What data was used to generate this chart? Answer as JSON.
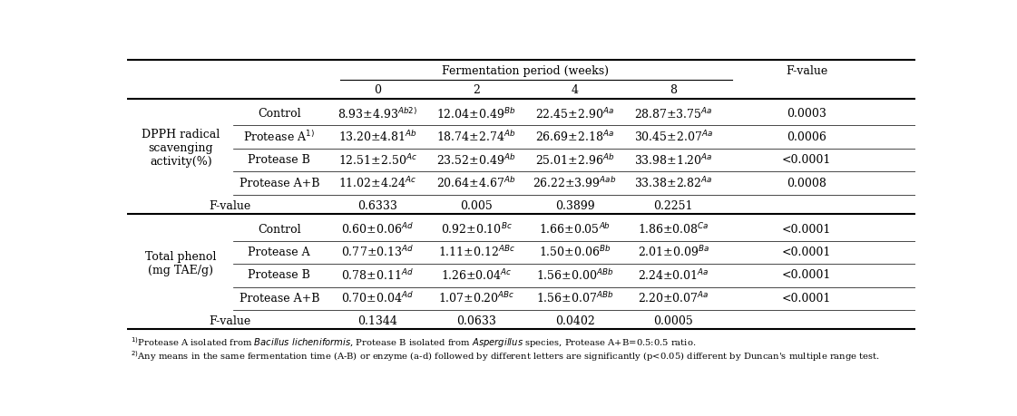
{
  "title": "Fermentation period (weeks)",
  "col_headers": [
    "0",
    "2",
    "4",
    "8"
  ],
  "fvalue_header": "F-value",
  "section1_label": "DPPH radical\nscavenging\nactivity(%)",
  "section2_label": "Total phenol\n(mg TAE/g)",
  "s1_labels": [
    "Control",
    "Protease A¹⧠",
    "Protease B",
    "Protease A+B"
  ],
  "s2_labels": [
    "Control",
    "Protease A",
    "Protease B",
    "Protease A+B"
  ],
  "data_1": [
    [
      "8.93±4.93",
      "Ab2)",
      "12.04±0.49",
      "Bb",
      "22.45±2.90",
      "Aa",
      "28.87±3.75",
      "Aa",
      "0.0003"
    ],
    [
      "13.20±4.81",
      "Ab",
      "18.74±2.74",
      "Ab",
      "26.69±2.18",
      "Aa",
      "30.45±2.07",
      "Aa",
      "0.0006"
    ],
    [
      "12.51±2.50",
      "Ac",
      "23.52±0.49",
      "Ab",
      "25.01±2.96",
      "Ab",
      "33.98±1.20",
      "Aa",
      "<0.0001"
    ],
    [
      "11.02±4.24",
      "Ac",
      "20.64±4.67",
      "Ab",
      "26.22±3.99",
      "Aab",
      "33.38±2.82",
      "Aa",
      "0.0008"
    ]
  ],
  "fval_1": [
    "0.6333",
    "0.005",
    "0.3899",
    "0.2251"
  ],
  "data_2": [
    [
      "0.60±0.06",
      "Ad",
      "0.92±0.10",
      "Bc",
      "1.66±0.05",
      "Ab",
      "1.86±0.08",
      "Ca",
      "<0.0001"
    ],
    [
      "0.77±0.13",
      "Ad",
      "1.11±0.12",
      "ABc",
      "1.50±0.06",
      "Bb",
      "2.01±0.09",
      "Ba",
      "<0.0001"
    ],
    [
      "0.78±0.11",
      "Ad",
      "1.26±0.04",
      "Ac",
      "1.56±0.00",
      "ABb",
      "2.24±0.01",
      "Aa",
      "<0.0001"
    ],
    [
      "0.70±0.04",
      "Ad",
      "1.07±0.20",
      "ABc",
      "1.56±0.07",
      "ABb",
      "2.20±0.07",
      "Aa",
      "<0.0001"
    ]
  ],
  "fval_2": [
    "0.1344",
    "0.0633",
    "0.0402",
    "0.0005"
  ],
  "s1_label1": "Protease A¹⧠",
  "bg_color": "#ffffff",
  "font_size": 9
}
